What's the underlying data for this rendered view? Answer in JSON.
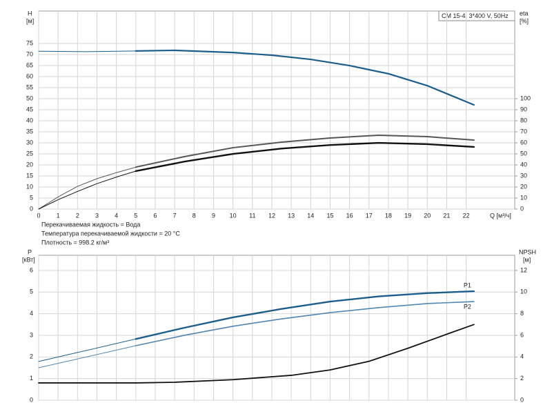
{
  "chart_data": [
    {
      "type": "line",
      "title": "CM 15-4, 3*400 V, 50Hz",
      "y_label": "H",
      "y_unit": "[м]",
      "y2_label": "eta",
      "y2_unit": "[%]",
      "x_label": "Q [м³/ч]",
      "notes": [
        "Перекачиваемая жидкость = Вода",
        "Температура перекачиваемой жидкости = 20 °C",
        "Плотность = 998.2 кг/м³"
      ],
      "xlim": [
        0,
        24.5
      ],
      "xticks": [
        0,
        1,
        2,
        3,
        4,
        5,
        6,
        7,
        8,
        9,
        10,
        11,
        12,
        13,
        14,
        15,
        16,
        17,
        18,
        19,
        20,
        21,
        22
      ],
      "xtick_labels": true,
      "ylim": [
        0,
        89.7
      ],
      "yticks": [
        0,
        5,
        10,
        15,
        20,
        25,
        30,
        35,
        40,
        45,
        50,
        55,
        60,
        65,
        70,
        75
      ],
      "y2lim": [
        0,
        179.4
      ],
      "y2ticks": [
        0,
        10,
        20,
        30,
        40,
        50,
        60,
        70,
        80,
        90,
        100
      ],
      "grid": true,
      "series": [
        {
          "color": "#1b5e8c",
          "width": 1,
          "x": [
            0,
            2.5,
            5
          ],
          "values": [
            71.5,
            71.3,
            71.6
          ]
        },
        {
          "color": "#1b5e8c",
          "width": 2.2,
          "x": [
            5,
            7,
            10,
            12,
            14,
            16,
            18,
            20,
            22.4
          ],
          "values": [
            71.6,
            71.9,
            70.9,
            69.7,
            67.8,
            65,
            61.3,
            55.9,
            47.2
          ]
        },
        {
          "color": "#555555",
          "width": 1,
          "axis": "y2",
          "x": [
            0,
            1,
            2,
            3,
            4,
            5
          ],
          "values": [
            0,
            11,
            20.6,
            27.5,
            33,
            38
          ]
        },
        {
          "color": "#555555",
          "width": 2,
          "axis": "y2",
          "x": [
            5,
            7.5,
            10,
            12.5,
            15,
            17.5,
            20,
            22.4
          ],
          "values": [
            38,
            47.5,
            55.6,
            60.6,
            64.4,
            66.9,
            65.6,
            62.5
          ]
        },
        {
          "color": "#111111",
          "width": 1,
          "axis": "y2",
          "x": [
            0,
            1,
            2,
            3,
            4,
            5
          ],
          "values": [
            0,
            8.5,
            16,
            23,
            29,
            34.4
          ]
        },
        {
          "color": "#111111",
          "width": 2.4,
          "axis": "y2",
          "x": [
            5,
            7.5,
            10,
            12.5,
            15,
            17.5,
            20,
            22.4
          ],
          "values": [
            34.4,
            43,
            50,
            54.8,
            58,
            60,
            58.8,
            56.3
          ]
        }
      ]
    },
    {
      "type": "line",
      "y_label": "P",
      "y_unit": "[кВт]",
      "y2_label": "NPSH",
      "y2_unit": "[м]",
      "xlim": [
        0,
        24.5
      ],
      "xticks": [
        0,
        1,
        2,
        3,
        4,
        5,
        6,
        7,
        8,
        9,
        10,
        11,
        12,
        13,
        14,
        15,
        16,
        17,
        18,
        19,
        20,
        21,
        22
      ],
      "xtick_labels": false,
      "ylim": [
        0,
        6.7
      ],
      "yticks": [
        0,
        1,
        2,
        3,
        4,
        5,
        6
      ],
      "y2lim": [
        0,
        13.4
      ],
      "y2ticks": [
        0,
        2,
        4,
        6,
        8,
        10,
        12
      ],
      "grid": true,
      "series": [
        {
          "color": "#1b5e8c",
          "width": 1,
          "x": [
            0,
            5
          ],
          "values": [
            1.79,
            2.83
          ]
        },
        {
          "name": "P1",
          "color": "#1b5e8c",
          "width": 2.4,
          "x": [
            5,
            7.5,
            10,
            12.5,
            15,
            17.5,
            20,
            22.4
          ],
          "values": [
            2.83,
            3.35,
            3.83,
            4.22,
            4.56,
            4.8,
            4.95,
            5.04
          ]
        },
        {
          "color": "#4f86b3",
          "width": 1,
          "x": [
            0,
            5
          ],
          "values": [
            1.5,
            2.52
          ]
        },
        {
          "name": "P2",
          "color": "#4f86b3",
          "width": 1.6,
          "x": [
            5,
            7.5,
            10,
            12.5,
            15,
            17.5,
            20,
            22.4
          ],
          "values": [
            2.52,
            3,
            3.42,
            3.76,
            4.05,
            4.28,
            4.47,
            4.56
          ]
        },
        {
          "color": "#111111",
          "width": 1.8,
          "axis": "y2",
          "x": [
            0,
            5,
            7,
            10,
            13,
            15,
            17,
            19,
            21,
            22.4
          ],
          "values": [
            1.6,
            1.6,
            1.66,
            1.9,
            2.3,
            2.8,
            3.6,
            4.8,
            6.1,
            7.0
          ]
        }
      ]
    }
  ]
}
